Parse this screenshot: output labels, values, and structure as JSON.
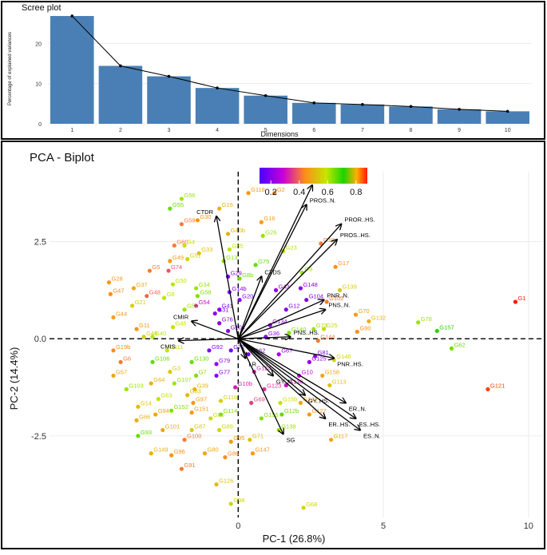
{
  "colors": {
    "bar": "#4a7fb5",
    "arrow": "#000000",
    "grid": "#ebebeb",
    "frame": "#000000"
  },
  "chart_data": [
    {
      "type": "bar",
      "title": "Scree plot",
      "xlabel": "Dimensions",
      "ylabel": "Percentage of explained variances",
      "categories": [
        "1",
        "2",
        "3",
        "4",
        "5",
        "6",
        "7",
        "8",
        "9",
        "10"
      ],
      "values": [
        26.8,
        14.4,
        11.8,
        8.9,
        7.0,
        5.2,
        4.8,
        4.3,
        3.6,
        3.1
      ],
      "ylim": [
        0,
        28
      ],
      "yticks": [
        "0",
        "10",
        "20"
      ],
      "ytick_values": [
        0,
        10,
        20
      ],
      "line_overlay": true
    },
    {
      "type": "scatter",
      "title": "PCA - Biplot",
      "xlabel": "PC-1 (26.8%)",
      "ylabel": "PC-2 (14.4%)",
      "xlim": [
        -6.5,
        10.5
      ],
      "ylim": [
        -4.6,
        4.3
      ],
      "xticks": [
        "0",
        "5",
        "10"
      ],
      "xtick_values": [
        0,
        5,
        10
      ],
      "yticks": [
        "-2.5",
        "0.0",
        "2.5"
      ],
      "ytick_values": [
        -2.5,
        0,
        2.5
      ],
      "legend": {
        "position": "top-center",
        "ticks": [
          "0.2",
          "0.4",
          "0.6",
          "0.8"
        ],
        "tick_values": [
          0.2,
          0.4,
          0.6,
          0.8
        ],
        "range": [
          0.12,
          0.88
        ]
      },
      "variables": [
        {
          "label": "PROR..N.",
          "x": 2.55,
          "y": 3.95
        },
        {
          "label": "PROS..N.",
          "x": 2.35,
          "y": 3.45
        },
        {
          "label": "PROR..HS.",
          "x": 3.55,
          "y": 2.95
        },
        {
          "label": "PROS..HS.",
          "x": 3.4,
          "y": 2.55
        },
        {
          "label": "PNR..N.",
          "x": 2.95,
          "y": 1.0
        },
        {
          "label": "PNS..N.",
          "x": 3.0,
          "y": 0.75
        },
        {
          "label": "PNS..HS.",
          "x": 1.8,
          "y": 0.05
        },
        {
          "label": "PNR..HS.",
          "x": 3.3,
          "y": -0.5
        },
        {
          "label": "ER..N.",
          "x": 3.7,
          "y": -1.65
        },
        {
          "label": "ES..HS.",
          "x": 4.05,
          "y": -2.05
        },
        {
          "label": "ES..N.",
          "x": 4.2,
          "y": -2.35
        },
        {
          "label": "ER..HS.",
          "x": 3.0,
          "y": -2.05
        },
        {
          "label": "GY..HS.",
          "x": 2.3,
          "y": -1.45
        },
        {
          "label": "SG",
          "x": 1.55,
          "y": -2.45
        },
        {
          "label": "GY..N.",
          "x": 1.2,
          "y": -0.95
        },
        {
          "label": "CTDS",
          "x": 0.8,
          "y": 1.6
        },
        {
          "label": "CTDR",
          "x": -0.75,
          "y": 3.15
        },
        {
          "label": "CMIR",
          "x": -1.6,
          "y": 0.45
        },
        {
          "label": "CMIS",
          "x": -2.05,
          "y": -0.05
        },
        {
          "label": "LR",
          "x": 0.25,
          "y": -0.5
        }
      ],
      "points": [
        {
          "label": "G1",
          "x": 9.55,
          "y": 0.95,
          "cos2": 0.88
        },
        {
          "label": "G121",
          "x": 8.6,
          "y": -1.3,
          "cos2": 0.86
        },
        {
          "label": "G157",
          "x": 6.85,
          "y": 0.2,
          "cos2": 0.72
        },
        {
          "label": "G78",
          "x": 6.2,
          "y": 0.42,
          "cos2": 0.62
        },
        {
          "label": "G62",
          "x": 7.35,
          "y": -0.25,
          "cos2": 0.65
        },
        {
          "label": "G132",
          "x": 4.5,
          "y": 0.45,
          "cos2": 0.5
        },
        {
          "label": "G70",
          "x": 4.05,
          "y": 0.62,
          "cos2": 0.46
        },
        {
          "label": "G90",
          "x": 4.1,
          "y": 0.18,
          "cos2": 0.44
        },
        {
          "label": "G139",
          "x": 3.5,
          "y": 1.25,
          "cos2": 0.54
        },
        {
          "label": "G17",
          "x": 3.35,
          "y": 1.85,
          "cos2": 0.45
        },
        {
          "label": "G19",
          "x": 2.85,
          "y": 2.45,
          "cos2": 0.42
        },
        {
          "label": "G146",
          "x": 3.3,
          "y": -0.55,
          "cos2": 0.56
        },
        {
          "label": "G113",
          "x": 3.15,
          "y": -1.2,
          "cos2": 0.53
        },
        {
          "label": "G158",
          "x": 2.9,
          "y": -0.95,
          "cos2": 0.48
        },
        {
          "label": "G117",
          "x": 3.2,
          "y": -2.6,
          "cos2": 0.48
        },
        {
          "label": "G68",
          "x": 2.25,
          "y": -4.35,
          "cos2": 0.56
        },
        {
          "label": "G2",
          "x": 1.25,
          "y": 3.75,
          "cos2": 0.45
        },
        {
          "label": "G16",
          "x": 0.8,
          "y": 3.0,
          "cos2": 0.46
        },
        {
          "label": "G118",
          "x": 0.35,
          "y": 3.75,
          "cos2": 0.46
        },
        {
          "label": "G15",
          "x": -0.65,
          "y": 3.35,
          "cos2": 0.5
        },
        {
          "label": "G56",
          "x": -1.95,
          "y": 3.6,
          "cos2": 0.62
        },
        {
          "label": "G55",
          "x": -2.35,
          "y": 3.35,
          "cos2": 0.66
        },
        {
          "label": "G30",
          "x": -1.4,
          "y": 3.05,
          "cos2": 0.45
        },
        {
          "label": "G59",
          "x": -1.95,
          "y": 2.95,
          "cos2": 0.42
        },
        {
          "label": "G60",
          "x": -2.2,
          "y": 2.4,
          "cos2": 0.42
        },
        {
          "label": "G4",
          "x": -1.85,
          "y": 2.4,
          "cos2": 0.58
        },
        {
          "label": "G33",
          "x": -1.35,
          "y": 2.2,
          "cos2": 0.52
        },
        {
          "label": "G49",
          "x": -2.35,
          "y": 2.0,
          "cos2": 0.46
        },
        {
          "label": "G51",
          "x": -1.75,
          "y": 2.05,
          "cos2": 0.56
        },
        {
          "label": "G5",
          "x": -3.05,
          "y": 1.75,
          "cos2": 0.42
        },
        {
          "label": "G74",
          "x": -2.4,
          "y": 1.75,
          "cos2": 0.38
        },
        {
          "label": "G28",
          "x": -4.45,
          "y": 1.45,
          "cos2": 0.46
        },
        {
          "label": "G37",
          "x": -3.6,
          "y": 1.3,
          "cos2": 0.48
        },
        {
          "label": "G47",
          "x": -4.4,
          "y": 1.15,
          "cos2": 0.44
        },
        {
          "label": "G48",
          "x": -3.15,
          "y": 1.1,
          "cos2": 0.4
        },
        {
          "label": "G21",
          "x": -3.65,
          "y": 0.85,
          "cos2": 0.55
        },
        {
          "label": "G44",
          "x": -4.3,
          "y": 0.55,
          "cos2": 0.47
        },
        {
          "label": "G11",
          "x": -3.5,
          "y": 0.25,
          "cos2": 0.45
        },
        {
          "label": "G19b",
          "x": -4.3,
          "y": -0.3,
          "cos2": 0.44
        },
        {
          "label": "G6",
          "x": -4.05,
          "y": -0.6,
          "cos2": 0.42
        },
        {
          "label": "G57",
          "x": -4.3,
          "y": -0.95,
          "cos2": 0.48
        },
        {
          "label": "G103",
          "x": -3.85,
          "y": -1.3,
          "cos2": 0.62
        },
        {
          "label": "G64",
          "x": -3.0,
          "y": -1.15,
          "cos2": 0.5
        },
        {
          "label": "G14",
          "x": -3.45,
          "y": -1.75,
          "cos2": 0.52
        },
        {
          "label": "G63",
          "x": -2.75,
          "y": -1.55,
          "cos2": 0.58
        },
        {
          "label": "G66",
          "x": -3.5,
          "y": -2.1,
          "cos2": 0.5
        },
        {
          "label": "G94",
          "x": -2.85,
          "y": -1.95,
          "cos2": 0.48
        },
        {
          "label": "G152",
          "x": -2.3,
          "y": -1.85,
          "cos2": 0.64
        },
        {
          "label": "G151",
          "x": -1.6,
          "y": -1.9,
          "cos2": 0.46
        },
        {
          "label": "G93",
          "x": -3.45,
          "y": -2.5,
          "cos2": 0.66
        },
        {
          "label": "G101",
          "x": -2.6,
          "y": -2.35,
          "cos2": 0.48
        },
        {
          "label": "G149",
          "x": -3.0,
          "y": -2.95,
          "cos2": 0.5
        },
        {
          "label": "G96",
          "x": -2.3,
          "y": -3.0,
          "cos2": 0.45
        },
        {
          "label": "G91",
          "x": -1.95,
          "y": -3.35,
          "cos2": 0.42
        },
        {
          "label": "G100",
          "x": -1.85,
          "y": -2.6,
          "cos2": 0.42
        },
        {
          "label": "G87",
          "x": -1.6,
          "y": -2.35,
          "cos2": 0.54
        },
        {
          "label": "G126",
          "x": -0.75,
          "y": -3.75,
          "cos2": 0.52
        },
        {
          "label": "G98",
          "x": -0.25,
          "y": -4.25,
          "cos2": 0.56
        },
        {
          "label": "G80",
          "x": -1.15,
          "y": -2.95,
          "cos2": 0.48
        },
        {
          "label": "G86",
          "x": -0.45,
          "y": -3.05,
          "cos2": 0.44
        },
        {
          "label": "G95",
          "x": -0.25,
          "y": -2.65,
          "cos2": 0.46
        },
        {
          "label": "G71",
          "x": 0.4,
          "y": -2.6,
          "cos2": 0.52
        },
        {
          "label": "G147",
          "x": 0.5,
          "y": -2.95,
          "cos2": 0.46
        },
        {
          "label": "G89",
          "x": -0.65,
          "y": -2.35,
          "cos2": 0.56
        },
        {
          "label": "G85",
          "x": -0.95,
          "y": -2.05,
          "cos2": 0.58
        },
        {
          "label": "G114",
          "x": -0.6,
          "y": -1.95,
          "cos2": 0.64
        },
        {
          "label": "G97",
          "x": -1.55,
          "y": -1.65,
          "cos2": 0.46
        },
        {
          "label": "G11b",
          "x": -0.6,
          "y": -1.6,
          "cos2": 0.55
        },
        {
          "label": "G39",
          "x": -1.5,
          "y": -1.3,
          "cos2": 0.5
        },
        {
          "label": "G83",
          "x": -1.75,
          "y": -1.45,
          "cos2": 0.52
        },
        {
          "label": "G107",
          "x": -2.2,
          "y": -1.15,
          "cos2": 0.62
        },
        {
          "label": "G3",
          "x": -2.35,
          "y": -0.85,
          "cos2": 0.54
        },
        {
          "label": "G7",
          "x": -1.45,
          "y": -0.95,
          "cos2": 0.64
        },
        {
          "label": "G106",
          "x": -2.95,
          "y": -0.6,
          "cos2": 0.66
        },
        {
          "label": "G111",
          "x": -2.45,
          "y": -0.3,
          "cos2": 0.58
        },
        {
          "label": "G130",
          "x": -1.6,
          "y": -0.6,
          "cos2": 0.66
        },
        {
          "label": "G92",
          "x": -1.0,
          "y": -0.3,
          "cos2": 0.2
        },
        {
          "label": "G79",
          "x": -0.75,
          "y": -0.65,
          "cos2": 0.22
        },
        {
          "label": "G77",
          "x": -0.75,
          "y": -0.95,
          "cos2": 0.2
        },
        {
          "label": "G72",
          "x": -0.25,
          "y": -0.3,
          "cos2": 0.18
        },
        {
          "label": "G162",
          "x": 0.35,
          "y": -0.4,
          "cos2": 0.18
        },
        {
          "label": "G10b",
          "x": -0.1,
          "y": -1.25,
          "cos2": 0.32
        },
        {
          "label": "G155",
          "x": 0.8,
          "y": -2.05,
          "cos2": 0.64
        },
        {
          "label": "G69",
          "x": 0.45,
          "y": -1.65,
          "cos2": 0.36
        },
        {
          "label": "G123",
          "x": 0.9,
          "y": -1.3,
          "cos2": 0.34
        },
        {
          "label": "G124",
          "x": 0.55,
          "y": -0.85,
          "cos2": 0.32
        },
        {
          "label": "G136",
          "x": 1.65,
          "y": -1.2,
          "cos2": 0.3
        },
        {
          "label": "G138",
          "x": 1.4,
          "y": -2.35,
          "cos2": 0.62
        },
        {
          "label": "G12b",
          "x": 1.5,
          "y": -1.95,
          "cos2": 0.66
        },
        {
          "label": "G15b",
          "x": 1.45,
          "y": -1.65,
          "cos2": 0.58
        },
        {
          "label": "G141",
          "x": 2.15,
          "y": -1.65,
          "cos2": 0.48
        },
        {
          "label": "G127",
          "x": 2.45,
          "y": -1.95,
          "cos2": 0.46
        },
        {
          "label": "G10",
          "x": 2.1,
          "y": -0.95,
          "cos2": 0.28
        },
        {
          "label": "G125",
          "x": 2.45,
          "y": -0.6,
          "cos2": 0.22
        },
        {
          "label": "G81",
          "x": 2.65,
          "y": -0.45,
          "cos2": 0.2
        },
        {
          "label": "G67",
          "x": 1.4,
          "y": -0.4,
          "cos2": 0.24
        },
        {
          "label": "G36",
          "x": 0.95,
          "y": 0.05,
          "cos2": 0.22
        },
        {
          "label": "G140",
          "x": 1.75,
          "y": 0.15,
          "cos2": 0.64
        },
        {
          "label": "G73",
          "x": 2.6,
          "y": 0.25,
          "cos2": 0.62
        },
        {
          "label": "G25",
          "x": 2.95,
          "y": 0.25,
          "cos2": 0.56
        },
        {
          "label": "G144",
          "x": 2.75,
          "y": -0.05,
          "cos2": 0.42
        },
        {
          "label": "G12",
          "x": 1.65,
          "y": 0.75,
          "cos2": 0.2
        },
        {
          "label": "G134",
          "x": 1.1,
          "y": 0.35,
          "cos2": 0.22
        },
        {
          "label": "G104",
          "x": 2.35,
          "y": 1.0,
          "cos2": 0.2
        },
        {
          "label": "G148",
          "x": 2.15,
          "y": 1.3,
          "cos2": 0.2
        },
        {
          "label": "G102",
          "x": 3.05,
          "y": 0.95,
          "cos2": 0.42
        },
        {
          "label": "G9",
          "x": 2.2,
          "y": 1.7,
          "cos2": 0.62
        },
        {
          "label": "G43",
          "x": 1.3,
          "y": 1.25,
          "cos2": 0.22
        },
        {
          "label": "G23",
          "x": 1.55,
          "y": 2.25,
          "cos2": 0.6
        },
        {
          "label": "G26",
          "x": 0.85,
          "y": 2.65,
          "cos2": 0.62
        },
        {
          "label": "G75",
          "x": 0.6,
          "y": 1.9,
          "cos2": 0.66
        },
        {
          "label": "G20",
          "x": 0.05,
          "y": 1.0,
          "cos2": 0.2
        },
        {
          "label": "G8b",
          "x": 0.05,
          "y": 1.55,
          "cos2": 0.65
        },
        {
          "label": "G29",
          "x": -0.35,
          "y": 1.6,
          "cos2": 0.2
        },
        {
          "label": "G13",
          "x": -0.5,
          "y": 2.0,
          "cos2": 0.64
        },
        {
          "label": "G35",
          "x": -0.3,
          "y": 2.3,
          "cos2": 0.6
        },
        {
          "label": "G40b",
          "x": -0.35,
          "y": 2.7,
          "cos2": 0.5
        },
        {
          "label": "G34",
          "x": -1.45,
          "y": 1.3,
          "cos2": 0.62
        },
        {
          "label": "G50",
          "x": -2.25,
          "y": 1.4,
          "cos2": 0.6
        },
        {
          "label": "G58",
          "x": -1.4,
          "y": 1.1,
          "cos2": 0.64
        },
        {
          "label": "G14b",
          "x": -0.3,
          "y": 1.2,
          "cos2": 0.2
        },
        {
          "label": "G54",
          "x": -1.45,
          "y": 0.85,
          "cos2": 0.3
        },
        {
          "label": "G41",
          "x": -0.65,
          "y": 0.75,
          "cos2": 0.2
        },
        {
          "label": "G52",
          "x": -1.85,
          "y": 0.75,
          "cos2": 0.62
        },
        {
          "label": "G8",
          "x": -2.55,
          "y": 1.05,
          "cos2": 0.6
        },
        {
          "label": "G31",
          "x": -0.8,
          "y": 0.65,
          "cos2": 0.2
        },
        {
          "label": "G45",
          "x": -2.25,
          "y": 0.3,
          "cos2": 0.58
        },
        {
          "label": "G46",
          "x": -3.25,
          "y": 0.05,
          "cos2": 0.55
        },
        {
          "label": "G40",
          "x": -2.95,
          "y": 0.05,
          "cos2": 0.6
        },
        {
          "label": "G76",
          "x": -0.65,
          "y": 0.4,
          "cos2": 0.2
        },
        {
          "label": "G10c",
          "x": -0.35,
          "y": 0.2,
          "cos2": 0.2
        }
      ]
    }
  ]
}
